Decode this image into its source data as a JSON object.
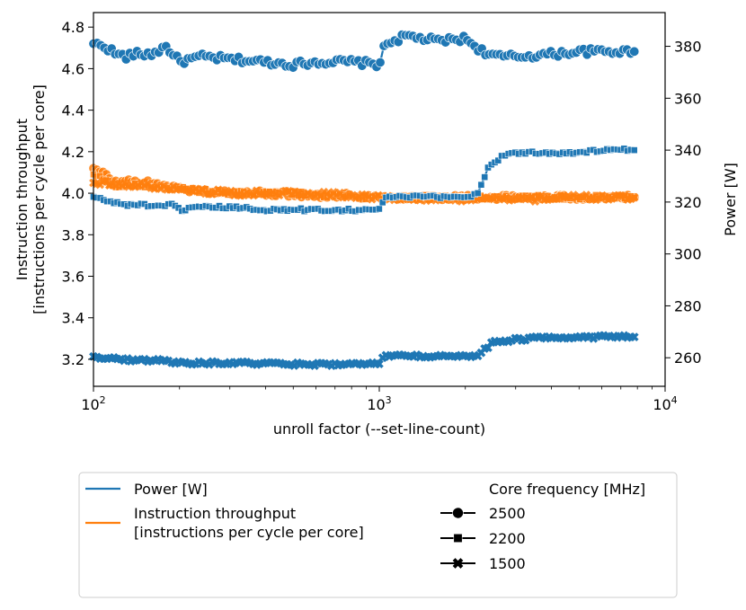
{
  "chart_data": {
    "type": "line",
    "xscale": "log",
    "xlim": [
      100,
      10000
    ],
    "xticks": [
      100,
      1000,
      10000
    ],
    "xtick_labels": [
      [
        "10",
        "2"
      ],
      [
        "10",
        "3"
      ],
      [
        "10",
        "4"
      ]
    ],
    "xlabel": "unroll factor (--set-line-count)",
    "ylabel_left": [
      "Instruction throughput",
      "[instructions per cycle per core]"
    ],
    "ylim_left": [
      3.07,
      4.87
    ],
    "yticks_left": [
      3.2,
      3.4,
      3.6,
      3.8,
      4.0,
      4.2,
      4.4,
      4.6,
      4.8
    ],
    "ytick_labels_left": [
      "3.2",
      "3.4",
      "3.6",
      "3.8",
      "4.0",
      "4.2",
      "4.4",
      "4.6",
      "4.8"
    ],
    "ylabel_right": "Power [W]",
    "ylim_right": [
      249,
      393
    ],
    "yticks_right": [
      260,
      280,
      300,
      320,
      340,
      360,
      380
    ],
    "ytick_labels_right": [
      "260",
      "280",
      "300",
      "320",
      "340",
      "360",
      "380"
    ],
    "colors": {
      "power": "#1f77b4",
      "throughput": "#ff7f0e"
    },
    "series": [
      {
        "name": "Power [W]",
        "axis": "right",
        "marker": "circle",
        "core_frequency": "2500",
        "x": [
          100,
          110,
          120,
          130,
          140,
          160,
          180,
          200,
          240,
          300,
          400,
          500,
          600,
          800,
          1000,
          1050,
          1250,
          1600,
          2000,
          2300,
          2600,
          3000,
          4000,
          5000,
          6000,
          7000,
          7800
        ],
        "y": [
          381,
          380,
          377,
          376,
          377,
          377,
          380,
          374,
          376,
          375,
          374,
          373,
          374,
          374,
          373,
          381,
          384,
          382,
          383,
          378,
          376,
          376,
          377,
          378,
          378,
          378,
          378
        ]
      },
      {
        "name": "Instruction throughput",
        "axis": "left",
        "marker": "circle",
        "core_frequency": "2500",
        "x": [
          100,
          105,
          110,
          120,
          130,
          150,
          180,
          200,
          250,
          300,
          400,
          600,
          800,
          1000,
          1500,
          2000,
          3000,
          5000,
          7800
        ],
        "y": [
          4.12,
          4.1,
          4.09,
          4.05,
          4.06,
          4.05,
          4.04,
          4.02,
          4.01,
          4.0,
          4.0,
          3.99,
          3.99,
          3.98,
          3.98,
          3.98,
          3.98,
          3.98,
          3.98
        ]
      },
      {
        "name": "Power [W]",
        "axis": "right",
        "marker": "square",
        "core_frequency": "2200",
        "x": [
          100,
          115,
          130,
          150,
          170,
          190,
          200,
          250,
          300,
          400,
          500,
          600,
          800,
          1000,
          1050,
          1500,
          2000,
          2200,
          2400,
          2700,
          3000,
          4000,
          5000,
          6000,
          7000,
          7800
        ],
        "y": [
          322,
          320,
          319,
          319,
          318,
          319,
          317,
          318,
          318,
          317,
          317,
          317,
          317,
          317,
          322,
          322,
          322,
          323,
          333,
          338,
          339,
          339,
          339,
          340,
          340,
          340
        ]
      },
      {
        "name": "Instruction throughput",
        "axis": "left",
        "marker": "square",
        "core_frequency": "2200",
        "x": [
          100,
          110,
          120,
          150,
          200,
          300,
          500,
          800,
          1000,
          1500,
          2000,
          3000,
          5000,
          7800
        ],
        "y": [
          4.09,
          4.06,
          4.03,
          4.04,
          4.02,
          4.0,
          4.0,
          3.98,
          3.98,
          3.98,
          3.98,
          3.98,
          3.98,
          3.98
        ]
      },
      {
        "name": "Power [W]",
        "axis": "right",
        "marker": "x",
        "core_frequency": "1500",
        "x": [
          100,
          120,
          150,
          180,
          200,
          300,
          500,
          800,
          1000,
          1050,
          1500,
          2000,
          2200,
          2500,
          3000,
          4000,
          5000,
          6000,
          7800
        ],
        "y": [
          260.5,
          259.5,
          259,
          259,
          258,
          258,
          257.5,
          257.5,
          257.5,
          261,
          260.5,
          260.5,
          261,
          266,
          267,
          268,
          268,
          268,
          268
        ]
      },
      {
        "name": "Instruction throughput",
        "axis": "left",
        "marker": "x",
        "core_frequency": "1500",
        "x": [
          100,
          150,
          200,
          300,
          500,
          800,
          1000,
          1500,
          2000,
          3000,
          5000,
          7800
        ],
        "y": [
          4.05,
          4.04,
          4.02,
          4.0,
          4.0,
          3.99,
          3.98,
          3.97,
          3.97,
          3.97,
          3.98,
          3.98
        ]
      }
    ],
    "legend": {
      "placement": "below",
      "entries": [
        {
          "label": [
            "Power [W]"
          ],
          "color_key": "power"
        },
        {
          "label": [
            "Instruction throughput",
            "[instructions per cycle per core]"
          ],
          "color_key": "throughput"
        }
      ],
      "marker_title": "Core frequency [MHz]",
      "marker_entries": [
        {
          "label": "2500",
          "marker": "circle"
        },
        {
          "label": "2200",
          "marker": "square"
        },
        {
          "label": "1500",
          "marker": "x"
        }
      ]
    }
  }
}
